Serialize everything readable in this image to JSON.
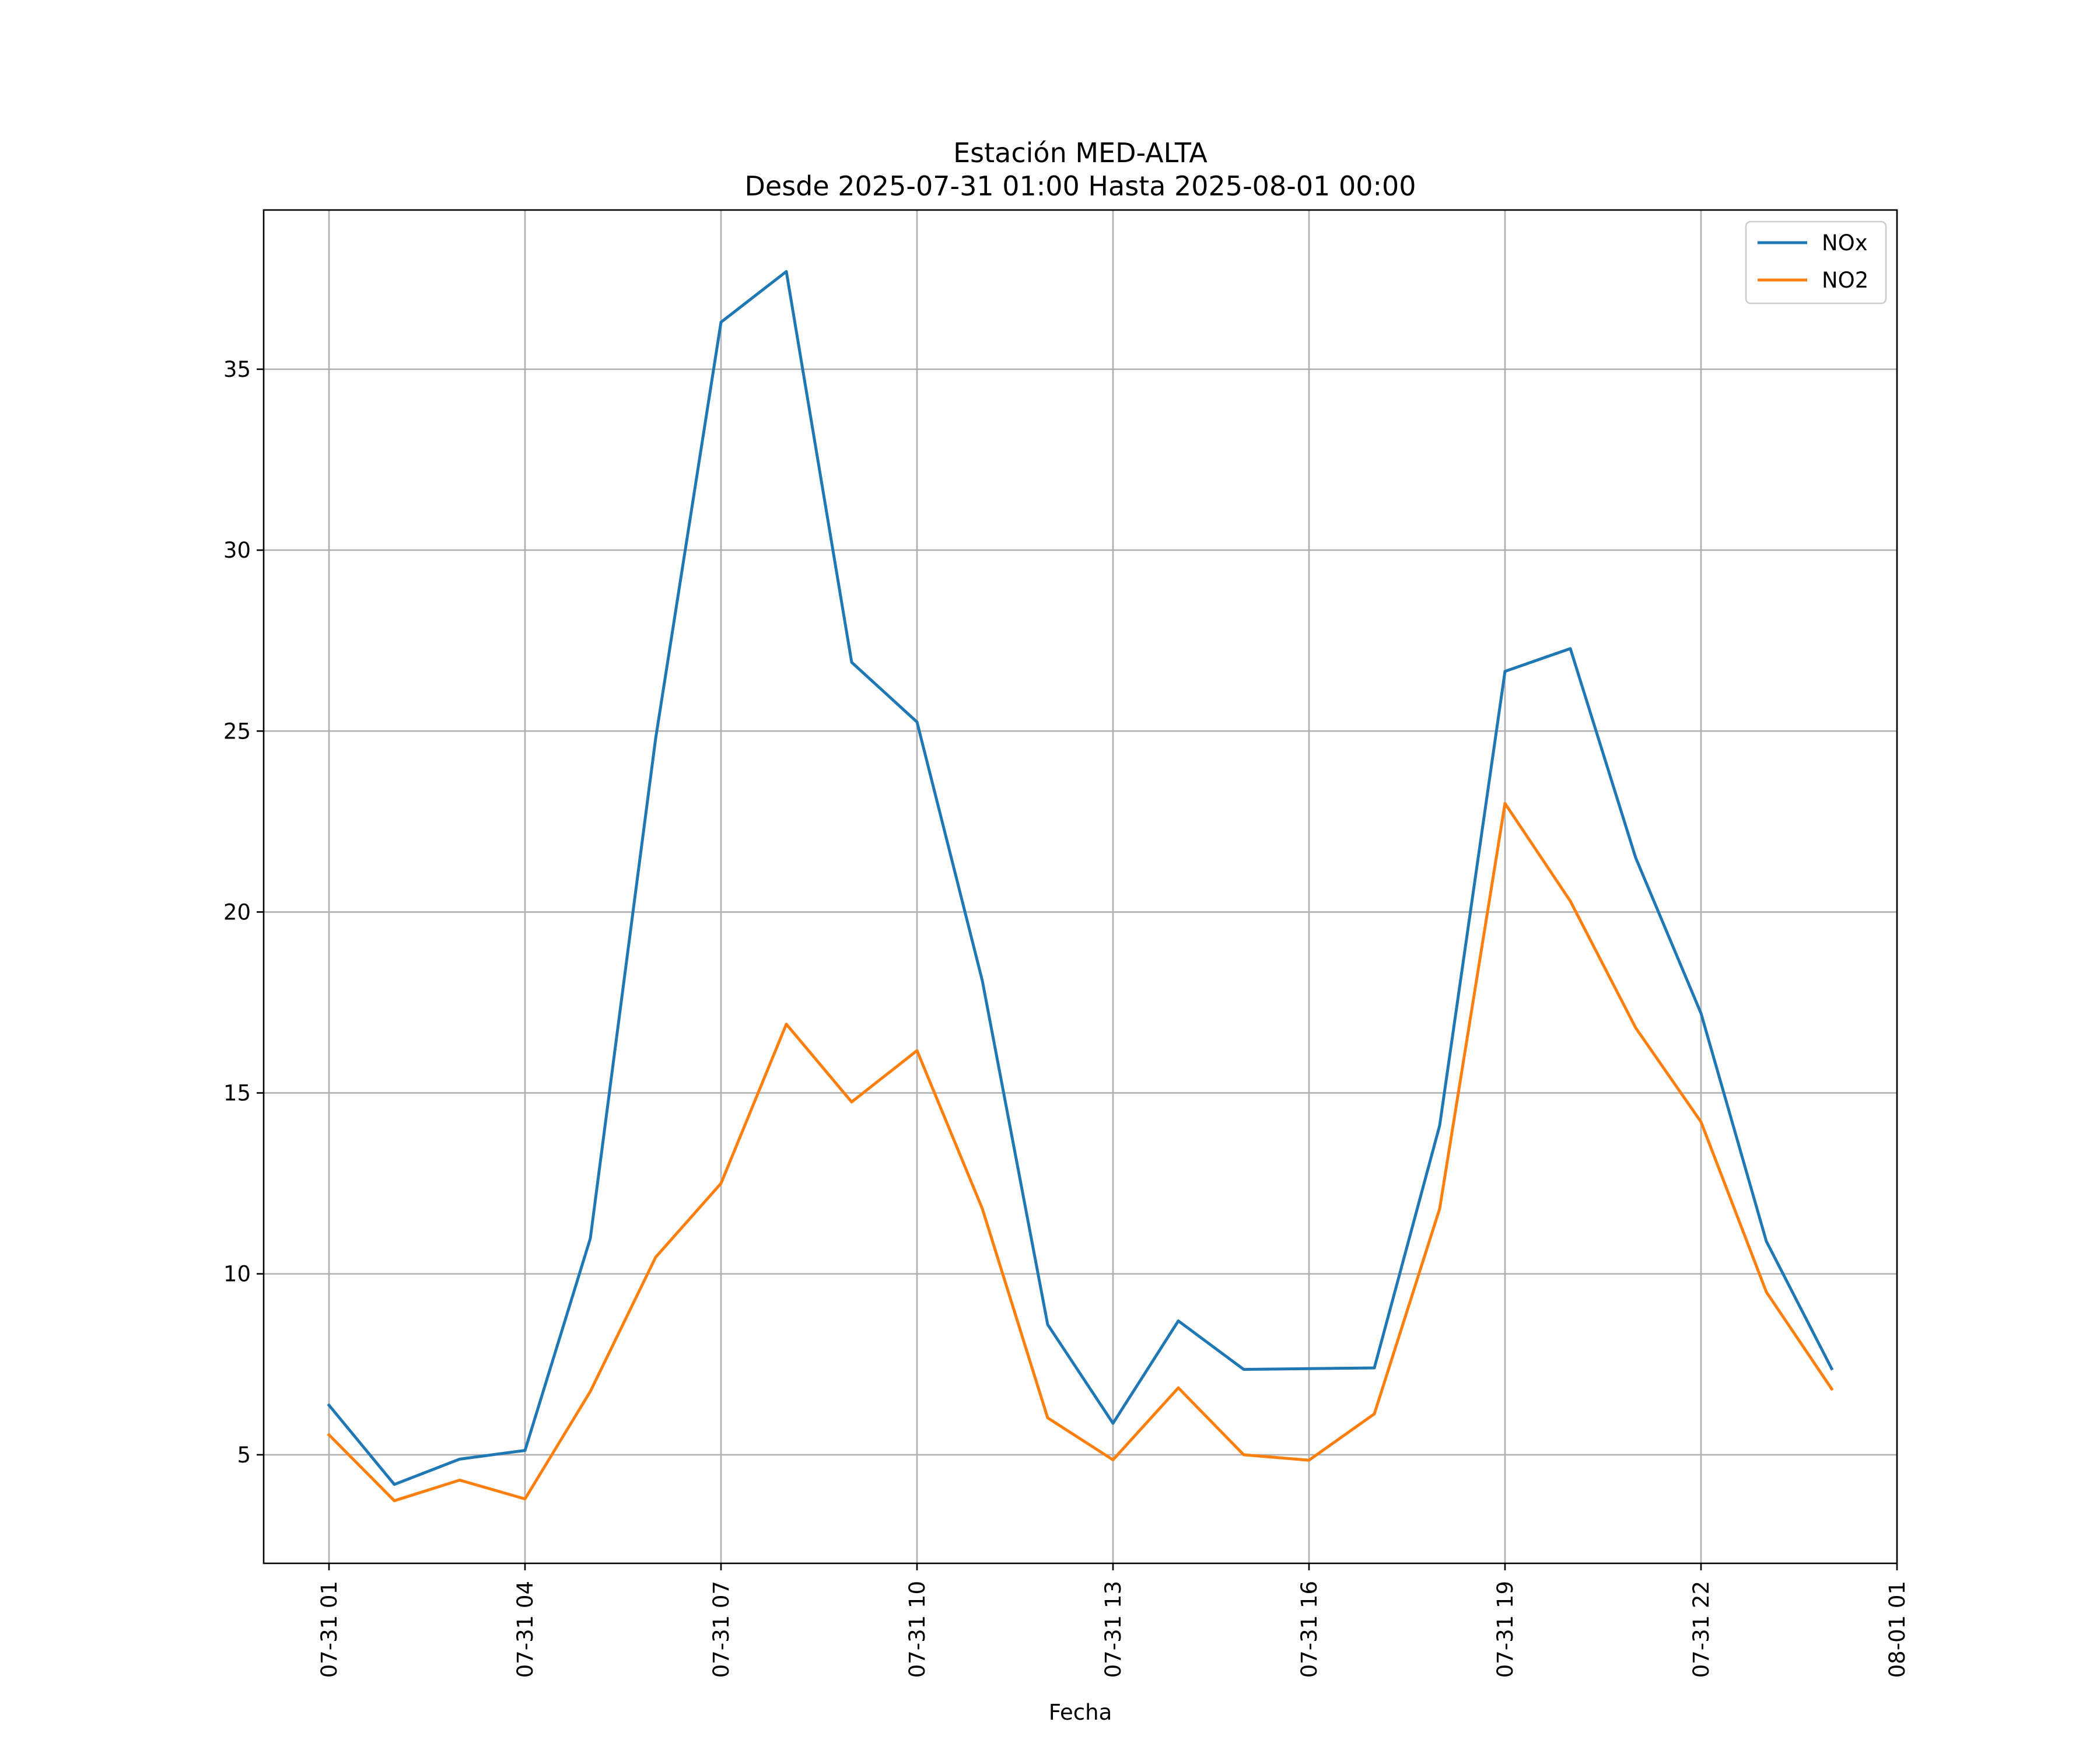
{
  "chart_data": {
    "type": "line",
    "title": "Estación MED-ALTA",
    "subtitle": "Desde 2025-07-31 01:00 Hasta 2025-08-01 00:00",
    "xlabel": "Fecha",
    "ylabel": "",
    "x": [
      "07-31 01",
      "07-31 02",
      "07-31 03",
      "07-31 04",
      "07-31 05",
      "07-31 06",
      "07-31 07",
      "07-31 08",
      "07-31 09",
      "07-31 10",
      "07-31 11",
      "07-31 12",
      "07-31 13",
      "07-31 14",
      "07-31 15",
      "07-31 16",
      "07-31 17",
      "07-31 18",
      "07-31 19",
      "07-31 20",
      "07-31 21",
      "07-31 22",
      "07-31 23",
      "08-01 00"
    ],
    "x_tick_labels": [
      "07-31 01",
      "07-31 04",
      "07-31 07",
      "07-31 10",
      "07-31 13",
      "07-31 16",
      "07-31 19",
      "07-31 22",
      "08-01 01"
    ],
    "y_tick_labels": [
      "5",
      "10",
      "15",
      "20",
      "25",
      "30",
      "35"
    ],
    "xlim": [
      "07-31 00:00",
      "08-01 01:00"
    ],
    "ylim": [
      2,
      39.4
    ],
    "grid": true,
    "legend_position": "top-right",
    "series": [
      {
        "name": "NOx",
        "color": "#1f77b4",
        "values": [
          6.37,
          4.18,
          4.88,
          5.12,
          10.98,
          24.8,
          36.3,
          37.7,
          26.9,
          25.25,
          18.1,
          8.6,
          5.87,
          8.7,
          7.36,
          7.38,
          7.4,
          14.1,
          26.65,
          27.28,
          21.5,
          17.2,
          10.9,
          7.38
        ]
      },
      {
        "name": "NO2",
        "color": "#ff7f0e",
        "values": [
          5.55,
          3.73,
          4.3,
          3.78,
          6.75,
          10.46,
          12.5,
          16.9,
          14.75,
          16.17,
          11.8,
          6.02,
          4.86,
          6.85,
          5.0,
          4.85,
          6.13,
          11.8,
          23.0,
          20.3,
          16.8,
          14.2,
          9.5,
          6.82
        ]
      }
    ]
  }
}
